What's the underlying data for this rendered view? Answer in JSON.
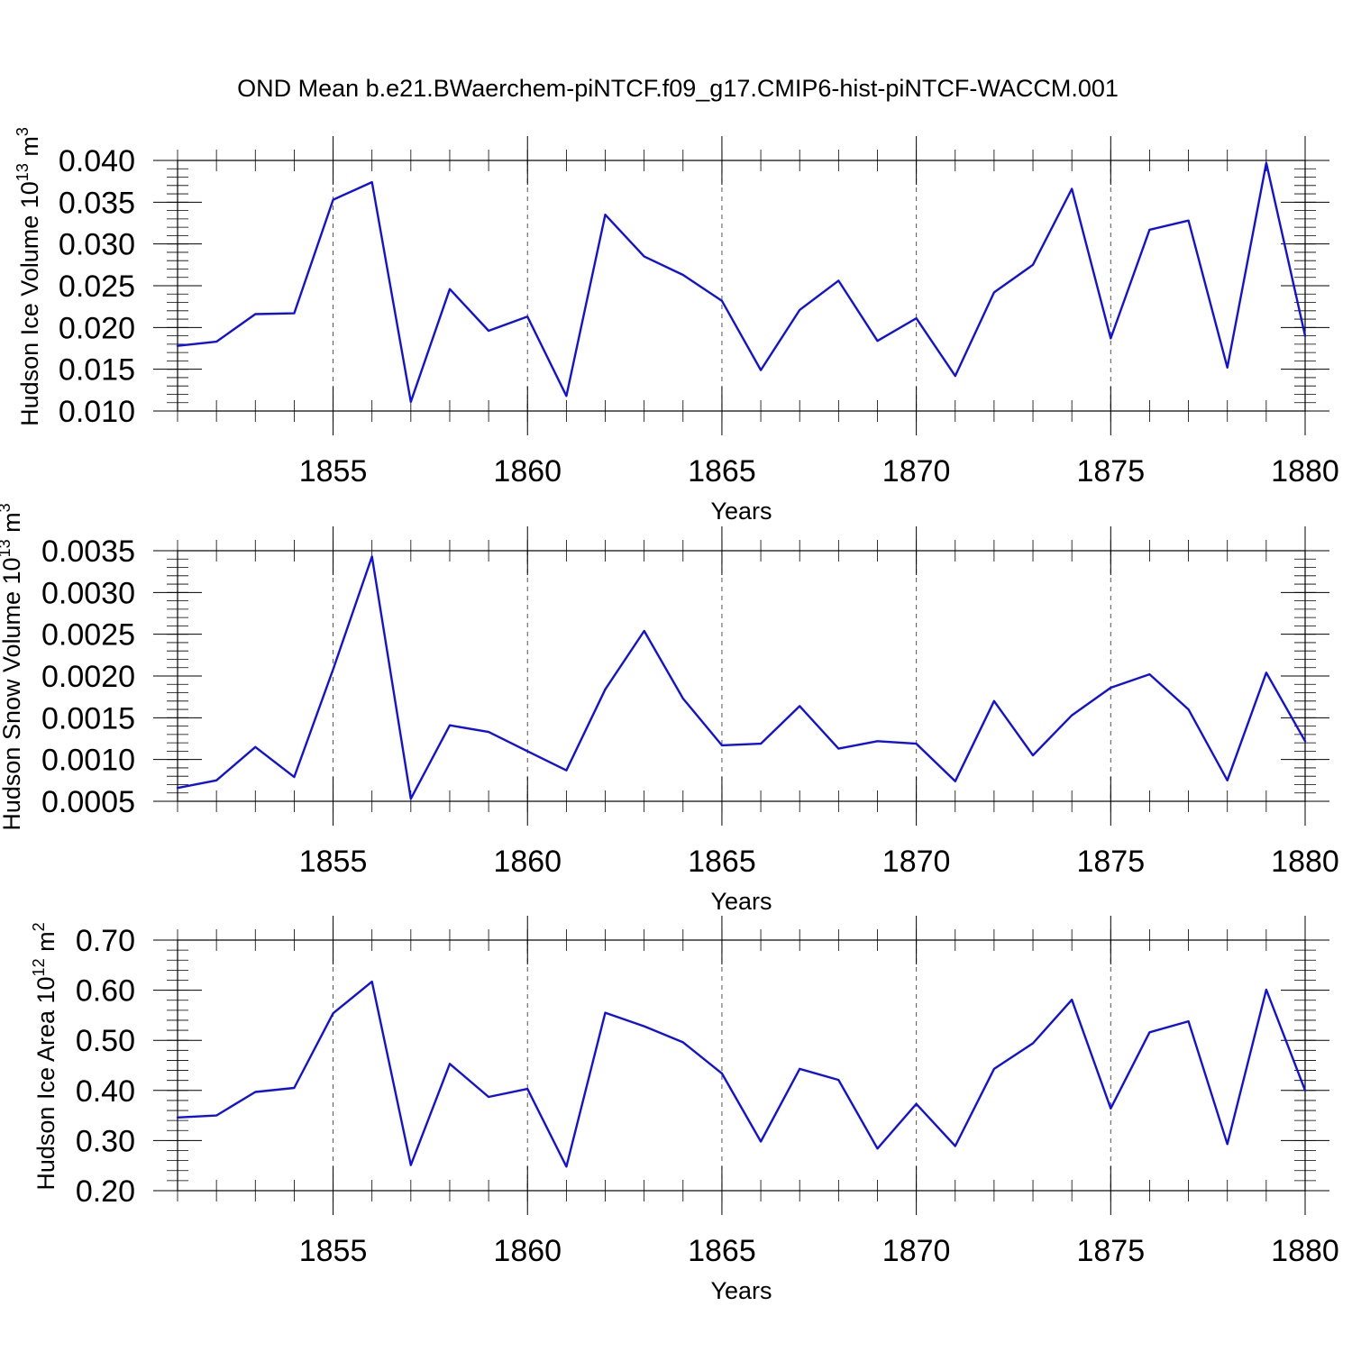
{
  "title": "OND Mean b.e21.BWaerchem-piNTCF.f09_g17.CMIP6-hist-piNTCF-WACCM.001",
  "colors": {
    "line": "#1010e6",
    "axis": "#000000",
    "grid": "#555555"
  },
  "chart_data": [
    {
      "type": "line",
      "ylabel": {
        "text": "Hudson Ice Volume 10",
        "sup": "13",
        "unit": "m",
        "unit_sup": "3"
      },
      "xlabel": "Years",
      "xlim": [
        1851,
        1880
      ],
      "ylim": [
        0.01,
        0.04
      ],
      "yticks": [
        0.01,
        0.015,
        0.02,
        0.025,
        0.03,
        0.035,
        0.04
      ],
      "ytick_labels": [
        "0.010",
        "0.015",
        "0.020",
        "0.025",
        "0.030",
        "0.035",
        "0.040"
      ],
      "xticks": [
        1855,
        1860,
        1865,
        1870,
        1875,
        1880
      ],
      "xtick_labels": [
        "1855",
        "1860",
        "1865",
        "1870",
        "1875",
        "1880"
      ],
      "grid": "vertical dashed at major x ticks",
      "x": [
        1851,
        1852,
        1853,
        1854,
        1855,
        1856,
        1857,
        1858,
        1859,
        1860,
        1861,
        1862,
        1863,
        1864,
        1865,
        1866,
        1867,
        1868,
        1869,
        1870,
        1871,
        1872,
        1873,
        1874,
        1875,
        1876,
        1877,
        1878,
        1879,
        1880
      ],
      "values": [
        0.0178,
        0.0183,
        0.0216,
        0.0217,
        0.0353,
        0.0374,
        0.0111,
        0.0246,
        0.0196,
        0.0213,
        0.0118,
        0.0335,
        0.0285,
        0.0263,
        0.0232,
        0.0149,
        0.0221,
        0.0256,
        0.0184,
        0.0211,
        0.0142,
        0.0242,
        0.0275,
        0.0366,
        0.0187,
        0.0317,
        0.0328,
        0.0152,
        0.0397,
        0.019
      ]
    },
    {
      "type": "line",
      "ylabel": {
        "text": "Hudson Snow Volume 10",
        "sup": "13",
        "unit": "m",
        "unit_sup": "3"
      },
      "xlabel": "Years",
      "xlim": [
        1851,
        1880
      ],
      "ylim": [
        0.0005,
        0.0035
      ],
      "yticks": [
        0.0005,
        0.001,
        0.0015,
        0.002,
        0.0025,
        0.003,
        0.0035
      ],
      "ytick_labels": [
        "0.0005",
        "0.0010",
        "0.0015",
        "0.0020",
        "0.0025",
        "0.0030",
        "0.0035"
      ],
      "xticks": [
        1855,
        1860,
        1865,
        1870,
        1875,
        1880
      ],
      "xtick_labels": [
        "1855",
        "1860",
        "1865",
        "1870",
        "1875",
        "1880"
      ],
      "grid": "vertical dashed at major x ticks",
      "x": [
        1851,
        1852,
        1853,
        1854,
        1855,
        1856,
        1857,
        1858,
        1859,
        1860,
        1861,
        1862,
        1863,
        1864,
        1865,
        1866,
        1867,
        1868,
        1869,
        1870,
        1871,
        1872,
        1873,
        1874,
        1875,
        1876,
        1877,
        1878,
        1879,
        1880
      ],
      "values": [
        0.00066,
        0.00075,
        0.00115,
        0.00079,
        0.00208,
        0.00343,
        0.00053,
        0.00141,
        0.00133,
        0.0011,
        0.00087,
        0.00184,
        0.00254,
        0.00173,
        0.00117,
        0.00119,
        0.00164,
        0.00113,
        0.00122,
        0.00119,
        0.00074,
        0.0017,
        0.00105,
        0.00153,
        0.00186,
        0.00202,
        0.0016,
        0.00075,
        0.00204,
        0.00122
      ]
    },
    {
      "type": "line",
      "ylabel": {
        "text": "Hudson Ice Area 10",
        "sup": "12",
        "unit": "m",
        "unit_sup": "2"
      },
      "xlabel": "Years",
      "xlim": [
        1851,
        1880
      ],
      "ylim": [
        0.2,
        0.7
      ],
      "yticks": [
        0.2,
        0.3,
        0.4,
        0.5,
        0.6,
        0.7
      ],
      "ytick_labels": [
        "0.20",
        "0.30",
        "0.40",
        "0.50",
        "0.60",
        "0.70"
      ],
      "xticks": [
        1855,
        1860,
        1865,
        1870,
        1875,
        1880
      ],
      "xtick_labels": [
        "1855",
        "1860",
        "1865",
        "1870",
        "1875",
        "1880"
      ],
      "grid": "vertical dashed at major x ticks",
      "x": [
        1851,
        1852,
        1853,
        1854,
        1855,
        1856,
        1857,
        1858,
        1859,
        1860,
        1861,
        1862,
        1863,
        1864,
        1865,
        1866,
        1867,
        1868,
        1869,
        1870,
        1871,
        1872,
        1873,
        1874,
        1875,
        1876,
        1877,
        1878,
        1879,
        1880
      ],
      "values": [
        0.346,
        0.35,
        0.397,
        0.405,
        0.554,
        0.617,
        0.251,
        0.453,
        0.387,
        0.403,
        0.248,
        0.555,
        0.528,
        0.496,
        0.434,
        0.298,
        0.443,
        0.421,
        0.284,
        0.373,
        0.289,
        0.443,
        0.494,
        0.581,
        0.364,
        0.516,
        0.538,
        0.293,
        0.601,
        0.4
      ]
    }
  ]
}
